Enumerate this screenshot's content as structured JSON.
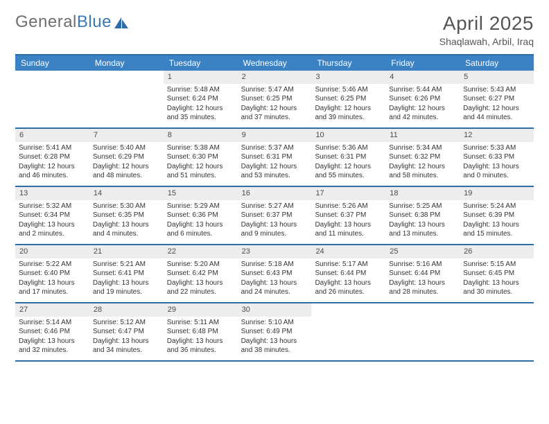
{
  "brand": {
    "part1": "General",
    "part2": "Blue"
  },
  "title": "April 2025",
  "location": "Shaqlawah, Arbil, Iraq",
  "colors": {
    "header_bar": "#3b82c4",
    "rule": "#2e6ca8",
    "daynum_bg": "#ededed",
    "text": "#333333",
    "logo_gray": "#6e6e6e",
    "logo_blue": "#3b78b5"
  },
  "dow": [
    "Sunday",
    "Monday",
    "Tuesday",
    "Wednesday",
    "Thursday",
    "Friday",
    "Saturday"
  ],
  "weeks": [
    [
      {
        "n": "",
        "sr": "",
        "ss": "",
        "dl": ""
      },
      {
        "n": "",
        "sr": "",
        "ss": "",
        "dl": ""
      },
      {
        "n": "1",
        "sr": "Sunrise: 5:48 AM",
        "ss": "Sunset: 6:24 PM",
        "dl": "Daylight: 12 hours and 35 minutes."
      },
      {
        "n": "2",
        "sr": "Sunrise: 5:47 AM",
        "ss": "Sunset: 6:25 PM",
        "dl": "Daylight: 12 hours and 37 minutes."
      },
      {
        "n": "3",
        "sr": "Sunrise: 5:46 AM",
        "ss": "Sunset: 6:25 PM",
        "dl": "Daylight: 12 hours and 39 minutes."
      },
      {
        "n": "4",
        "sr": "Sunrise: 5:44 AM",
        "ss": "Sunset: 6:26 PM",
        "dl": "Daylight: 12 hours and 42 minutes."
      },
      {
        "n": "5",
        "sr": "Sunrise: 5:43 AM",
        "ss": "Sunset: 6:27 PM",
        "dl": "Daylight: 12 hours and 44 minutes."
      }
    ],
    [
      {
        "n": "6",
        "sr": "Sunrise: 5:41 AM",
        "ss": "Sunset: 6:28 PM",
        "dl": "Daylight: 12 hours and 46 minutes."
      },
      {
        "n": "7",
        "sr": "Sunrise: 5:40 AM",
        "ss": "Sunset: 6:29 PM",
        "dl": "Daylight: 12 hours and 48 minutes."
      },
      {
        "n": "8",
        "sr": "Sunrise: 5:38 AM",
        "ss": "Sunset: 6:30 PM",
        "dl": "Daylight: 12 hours and 51 minutes."
      },
      {
        "n": "9",
        "sr": "Sunrise: 5:37 AM",
        "ss": "Sunset: 6:31 PM",
        "dl": "Daylight: 12 hours and 53 minutes."
      },
      {
        "n": "10",
        "sr": "Sunrise: 5:36 AM",
        "ss": "Sunset: 6:31 PM",
        "dl": "Daylight: 12 hours and 55 minutes."
      },
      {
        "n": "11",
        "sr": "Sunrise: 5:34 AM",
        "ss": "Sunset: 6:32 PM",
        "dl": "Daylight: 12 hours and 58 minutes."
      },
      {
        "n": "12",
        "sr": "Sunrise: 5:33 AM",
        "ss": "Sunset: 6:33 PM",
        "dl": "Daylight: 13 hours and 0 minutes."
      }
    ],
    [
      {
        "n": "13",
        "sr": "Sunrise: 5:32 AM",
        "ss": "Sunset: 6:34 PM",
        "dl": "Daylight: 13 hours and 2 minutes."
      },
      {
        "n": "14",
        "sr": "Sunrise: 5:30 AM",
        "ss": "Sunset: 6:35 PM",
        "dl": "Daylight: 13 hours and 4 minutes."
      },
      {
        "n": "15",
        "sr": "Sunrise: 5:29 AM",
        "ss": "Sunset: 6:36 PM",
        "dl": "Daylight: 13 hours and 6 minutes."
      },
      {
        "n": "16",
        "sr": "Sunrise: 5:27 AM",
        "ss": "Sunset: 6:37 PM",
        "dl": "Daylight: 13 hours and 9 minutes."
      },
      {
        "n": "17",
        "sr": "Sunrise: 5:26 AM",
        "ss": "Sunset: 6:37 PM",
        "dl": "Daylight: 13 hours and 11 minutes."
      },
      {
        "n": "18",
        "sr": "Sunrise: 5:25 AM",
        "ss": "Sunset: 6:38 PM",
        "dl": "Daylight: 13 hours and 13 minutes."
      },
      {
        "n": "19",
        "sr": "Sunrise: 5:24 AM",
        "ss": "Sunset: 6:39 PM",
        "dl": "Daylight: 13 hours and 15 minutes."
      }
    ],
    [
      {
        "n": "20",
        "sr": "Sunrise: 5:22 AM",
        "ss": "Sunset: 6:40 PM",
        "dl": "Daylight: 13 hours and 17 minutes."
      },
      {
        "n": "21",
        "sr": "Sunrise: 5:21 AM",
        "ss": "Sunset: 6:41 PM",
        "dl": "Daylight: 13 hours and 19 minutes."
      },
      {
        "n": "22",
        "sr": "Sunrise: 5:20 AM",
        "ss": "Sunset: 6:42 PM",
        "dl": "Daylight: 13 hours and 22 minutes."
      },
      {
        "n": "23",
        "sr": "Sunrise: 5:18 AM",
        "ss": "Sunset: 6:43 PM",
        "dl": "Daylight: 13 hours and 24 minutes."
      },
      {
        "n": "24",
        "sr": "Sunrise: 5:17 AM",
        "ss": "Sunset: 6:44 PM",
        "dl": "Daylight: 13 hours and 26 minutes."
      },
      {
        "n": "25",
        "sr": "Sunrise: 5:16 AM",
        "ss": "Sunset: 6:44 PM",
        "dl": "Daylight: 13 hours and 28 minutes."
      },
      {
        "n": "26",
        "sr": "Sunrise: 5:15 AM",
        "ss": "Sunset: 6:45 PM",
        "dl": "Daylight: 13 hours and 30 minutes."
      }
    ],
    [
      {
        "n": "27",
        "sr": "Sunrise: 5:14 AM",
        "ss": "Sunset: 6:46 PM",
        "dl": "Daylight: 13 hours and 32 minutes."
      },
      {
        "n": "28",
        "sr": "Sunrise: 5:12 AM",
        "ss": "Sunset: 6:47 PM",
        "dl": "Daylight: 13 hours and 34 minutes."
      },
      {
        "n": "29",
        "sr": "Sunrise: 5:11 AM",
        "ss": "Sunset: 6:48 PM",
        "dl": "Daylight: 13 hours and 36 minutes."
      },
      {
        "n": "30",
        "sr": "Sunrise: 5:10 AM",
        "ss": "Sunset: 6:49 PM",
        "dl": "Daylight: 13 hours and 38 minutes."
      },
      {
        "n": "",
        "sr": "",
        "ss": "",
        "dl": ""
      },
      {
        "n": "",
        "sr": "",
        "ss": "",
        "dl": ""
      },
      {
        "n": "",
        "sr": "",
        "ss": "",
        "dl": ""
      }
    ]
  ]
}
